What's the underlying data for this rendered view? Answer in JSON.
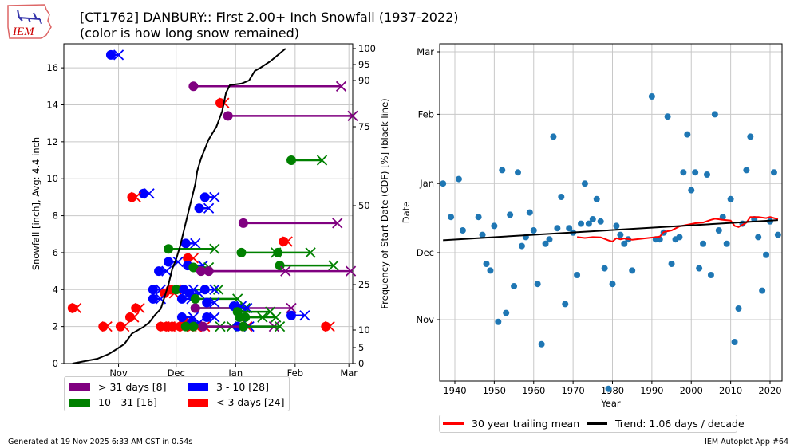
{
  "header": {
    "logo_text": "IEM",
    "title_line1": "[CT1762] DANBURY:: First 2.00+ Inch Snowfall (1937-2022)",
    "title_line2": "(color is how long snow remained)"
  },
  "footer": {
    "generated": "Generated at 19 Nov 2025 6:33 AM CST in 0.54s",
    "app": "IEM Autoplot App #64"
  },
  "chart_data": [
    {
      "type": "scatter",
      "title": "First 2.00+ Inch Snowfall by start date, amount and duration",
      "xlabel": "",
      "ylabel": "Snowfall [inch], Avg: 4.4 inch",
      "y2label": "Frequency of Start Date (CDF) [%] (black line)",
      "x_units": "days since Oct 1",
      "xlim": [
        2.5,
        153
      ],
      "ylim": [
        0,
        17.3
      ],
      "xticks": [
        {
          "label": "Nov",
          "day": 31
        },
        {
          "label": "Dec",
          "day": 61
        },
        {
          "label": "Jan",
          "day": 92
        },
        {
          "label": "Feb",
          "day": 123
        },
        {
          "label": "Mar",
          "day": 151
        }
      ],
      "yticks": [
        0,
        2,
        4,
        6,
        8,
        10,
        12,
        14,
        16
      ],
      "y2ticks": [
        0,
        5,
        10,
        25,
        50,
        75,
        90,
        95,
        100
      ],
      "grid": true,
      "legend": [
        {
          "label": "> 31 days [8]",
          "color": "#800080"
        },
        {
          "label": "3 - 10 [28]",
          "color": "#0000ff"
        },
        {
          "label": "10 - 31 [16]",
          "color": "#008000"
        },
        {
          "label": "< 3 days [24]",
          "color": "#ff0000"
        }
      ],
      "colors": {
        "gt31": "#800080",
        "10to31": "#008000",
        "3to10": "#0000ff",
        "lt3": "#ff0000",
        "cdf": "#000000"
      },
      "events": [
        {
          "start": 27,
          "end": 31,
          "snow": 16.7,
          "cls": "3to10"
        },
        {
          "start": 70,
          "end": 147,
          "snow": 15.0,
          "cls": "gt31"
        },
        {
          "start": 88,
          "end": 153,
          "snow": 13.4,
          "cls": "gt31"
        },
        {
          "start": 84,
          "end": 86,
          "snow": 14.1,
          "cls": "lt3"
        },
        {
          "start": 121,
          "end": 137,
          "snow": 11.0,
          "cls": "10to31"
        },
        {
          "start": 44,
          "end": 47,
          "snow": 9.2,
          "cls": "3to10"
        },
        {
          "start": 38,
          "end": 40,
          "snow": 9.0,
          "cls": "lt3"
        },
        {
          "start": 76,
          "end": 81,
          "snow": 9.0,
          "cls": "3to10"
        },
        {
          "start": 73,
          "end": 78,
          "snow": 8.4,
          "cls": "3to10"
        },
        {
          "start": 96,
          "end": 145,
          "snow": 7.6,
          "cls": "gt31"
        },
        {
          "start": 117,
          "end": 119,
          "snow": 6.6,
          "cls": "lt3"
        },
        {
          "start": 66,
          "end": 71,
          "snow": 6.5,
          "cls": "3to10"
        },
        {
          "start": 57,
          "end": 81,
          "snow": 6.2,
          "cls": "10to31"
        },
        {
          "start": 95,
          "end": 113,
          "snow": 6.0,
          "cls": "10to31"
        },
        {
          "start": 114,
          "end": 131,
          "snow": 6.0,
          "cls": "10to31"
        },
        {
          "start": 67,
          "end": 70,
          "snow": 5.7,
          "cls": "lt3"
        },
        {
          "start": 57,
          "end": 62,
          "snow": 5.5,
          "cls": "3to10"
        },
        {
          "start": 67,
          "end": 75,
          "snow": 5.3,
          "cls": "3to10"
        },
        {
          "start": 115,
          "end": 143,
          "snow": 5.3,
          "cls": "10to31"
        },
        {
          "start": 70,
          "end": 78,
          "snow": 5.2,
          "cls": "10to31"
        },
        {
          "start": 52,
          "end": 56,
          "snow": 5.0,
          "cls": "3to10"
        },
        {
          "start": 74,
          "end": 118,
          "snow": 5.0,
          "cls": "gt31"
        },
        {
          "start": 78,
          "end": 152,
          "snow": 5.0,
          "cls": "gt31"
        },
        {
          "start": 49,
          "end": 53,
          "snow": 4.0,
          "cls": "3to10"
        },
        {
          "start": 55,
          "end": 60,
          "snow": 3.8,
          "cls": "lt3"
        },
        {
          "start": 58,
          "end": 61,
          "snow": 4.0,
          "cls": "lt3"
        },
        {
          "start": 61,
          "end": 83,
          "snow": 4.0,
          "cls": "10to31"
        },
        {
          "start": 65,
          "end": 70,
          "snow": 4.0,
          "cls": "3to10"
        },
        {
          "start": 68,
          "end": 73,
          "snow": 3.8,
          "cls": "3to10"
        },
        {
          "start": 76,
          "end": 81,
          "snow": 4.0,
          "cls": "3to10"
        },
        {
          "start": 49,
          "end": 53,
          "snow": 3.5,
          "cls": "3to10"
        },
        {
          "start": 64,
          "end": 69,
          "snow": 3.5,
          "cls": "3to10"
        },
        {
          "start": 71,
          "end": 93,
          "snow": 3.5,
          "cls": "10to31"
        },
        {
          "start": 71,
          "end": 97,
          "snow": 3.0,
          "cls": "10to31"
        },
        {
          "start": 71,
          "end": 121,
          "snow": 3.0,
          "cls": "gt31"
        },
        {
          "start": 77,
          "end": 81,
          "snow": 3.3,
          "cls": "3to10"
        },
        {
          "start": 91,
          "end": 95,
          "snow": 3.1,
          "cls": "3to10"
        },
        {
          "start": 93,
          "end": 98,
          "snow": 3.0,
          "cls": "3to10"
        },
        {
          "start": 93,
          "end": 110,
          "snow": 2.8,
          "cls": "10to31"
        },
        {
          "start": 94,
          "end": 106,
          "snow": 2.5,
          "cls": "10to31"
        },
        {
          "start": 97,
          "end": 113,
          "snow": 2.5,
          "cls": "10to31"
        },
        {
          "start": 121,
          "end": 128,
          "snow": 2.6,
          "cls": "3to10"
        },
        {
          "start": 7,
          "end": 9,
          "snow": 3.0,
          "cls": "lt3"
        },
        {
          "start": 37,
          "end": 39,
          "snow": 2.5,
          "cls": "lt3"
        },
        {
          "start": 40,
          "end": 42,
          "snow": 3.0,
          "cls": "lt3"
        },
        {
          "start": 23,
          "end": 25,
          "snow": 2.0,
          "cls": "lt3"
        },
        {
          "start": 32,
          "end": 34,
          "snow": 2.0,
          "cls": "lt3"
        },
        {
          "start": 53,
          "end": 55,
          "snow": 2.0,
          "cls": "lt3"
        },
        {
          "start": 56,
          "end": 58,
          "snow": 2.0,
          "cls": "lt3"
        },
        {
          "start": 59,
          "end": 61,
          "snow": 2.0,
          "cls": "lt3"
        },
        {
          "start": 63,
          "end": 65,
          "snow": 2.0,
          "cls": "lt3"
        },
        {
          "start": 65,
          "end": 67,
          "snow": 2.3,
          "cls": "lt3"
        },
        {
          "start": 67,
          "end": 69,
          "snow": 2.0,
          "cls": "lt3"
        },
        {
          "start": 70,
          "end": 72,
          "snow": 2.0,
          "cls": "lt3"
        },
        {
          "start": 74,
          "end": 76,
          "snow": 2.0,
          "cls": "lt3"
        },
        {
          "start": 96,
          "end": 98,
          "snow": 2.0,
          "cls": "lt3"
        },
        {
          "start": 139,
          "end": 141,
          "snow": 2.0,
          "cls": "lt3"
        },
        {
          "start": 64,
          "end": 70,
          "snow": 2.5,
          "cls": "3to10"
        },
        {
          "start": 69,
          "end": 73,
          "snow": 2.2,
          "cls": "3to10"
        },
        {
          "start": 77,
          "end": 81,
          "snow": 2.5,
          "cls": "3to10"
        },
        {
          "start": 66,
          "end": 84,
          "snow": 2.0,
          "cls": "10to31"
        },
        {
          "start": 70,
          "end": 90,
          "snow": 2.0,
          "cls": "10to31"
        },
        {
          "start": 93,
          "end": 99,
          "snow": 2.0,
          "cls": "3to10"
        },
        {
          "start": 75,
          "end": 112,
          "snow": 2.0,
          "cls": "gt31"
        },
        {
          "start": 96,
          "end": 115,
          "snow": 2.0,
          "cls": "10to31"
        }
      ],
      "cdf": [
        [
          7,
          0
        ],
        [
          20,
          1.5
        ],
        [
          26,
          3
        ],
        [
          30,
          4.5
        ],
        [
          34,
          6
        ],
        [
          38,
          9
        ],
        [
          44,
          11
        ],
        [
          47,
          12.5
        ],
        [
          50,
          15
        ],
        [
          53,
          17
        ],
        [
          55,
          21
        ],
        [
          57,
          25
        ],
        [
          59,
          30
        ],
        [
          61,
          33
        ],
        [
          63,
          37
        ],
        [
          65,
          42
        ],
        [
          67,
          47
        ],
        [
          69,
          52
        ],
        [
          71,
          57
        ],
        [
          72,
          61
        ],
        [
          74,
          65
        ],
        [
          76,
          68
        ],
        [
          78,
          71
        ],
        [
          80,
          73
        ],
        [
          82,
          75
        ],
        [
          85,
          80
        ],
        [
          87,
          86
        ],
        [
          89,
          88.5
        ],
        [
          95,
          89
        ],
        [
          99,
          90
        ],
        [
          102,
          93
        ],
        [
          105,
          94
        ],
        [
          110,
          96
        ],
        [
          114,
          98
        ],
        [
          118,
          100
        ]
      ]
    },
    {
      "type": "scatter",
      "title": "Start date of first 2.00+ inch snowfall by season",
      "xlabel": "Year",
      "ylabel": "Date",
      "xlim": [
        1936,
        2023
      ],
      "ylim_days_since_oct1": [
        9,
        156
      ],
      "xticks": [
        1940,
        1950,
        1960,
        1970,
        1980,
        1990,
        2000,
        2010,
        2020
      ],
      "yticks": [
        {
          "label": "Nov",
          "day": 31
        },
        {
          "label": "Dec",
          "day": 61
        },
        {
          "label": "Jan",
          "day": 92
        },
        {
          "label": "Feb",
          "day": 123
        },
        {
          "label": "Mar",
          "day": 151
        }
      ],
      "grid": true,
      "legend": [
        {
          "label": "30 year trailing mean",
          "color": "#ff0000"
        },
        {
          "label": "Trend: 1.06 days / decade",
          "color": "#000000"
        }
      ],
      "point_color": "#1f77b4",
      "points": [
        [
          1937,
          92
        ],
        [
          1939,
          77
        ],
        [
          1941,
          94
        ],
        [
          1942,
          71
        ],
        [
          1946,
          77
        ],
        [
          1947,
          69
        ],
        [
          1948,
          56
        ],
        [
          1949,
          53
        ],
        [
          1950,
          73
        ],
        [
          1951,
          30
        ],
        [
          1952,
          98
        ],
        [
          1953,
          34
        ],
        [
          1954,
          78
        ],
        [
          1955,
          46
        ],
        [
          1956,
          97
        ],
        [
          1957,
          64
        ],
        [
          1958,
          68
        ],
        [
          1959,
          79
        ],
        [
          1960,
          71
        ],
        [
          1961,
          47
        ],
        [
          1962,
          20
        ],
        [
          1963,
          65
        ],
        [
          1964,
          67
        ],
        [
          1965,
          113
        ],
        [
          1966,
          72
        ],
        [
          1967,
          86
        ],
        [
          1968,
          38
        ],
        [
          1969,
          72
        ],
        [
          1970,
          70
        ],
        [
          1971,
          51
        ],
        [
          1972,
          74
        ],
        [
          1973,
          92
        ],
        [
          1974,
          74
        ],
        [
          1975,
          76
        ],
        [
          1976,
          85
        ],
        [
          1977,
          75
        ],
        [
          1978,
          54
        ],
        [
          1979,
          0
        ],
        [
          1980,
          47
        ],
        [
          1981,
          73
        ],
        [
          1982,
          69
        ],
        [
          1983,
          65
        ],
        [
          1984,
          67
        ],
        [
          1985,
          53
        ],
        [
          1990,
          131
        ],
        [
          1991,
          67
        ],
        [
          1992,
          67
        ],
        [
          1993,
          70
        ],
        [
          1994,
          122
        ],
        [
          1995,
          56
        ],
        [
          1996,
          67
        ],
        [
          1997,
          68
        ],
        [
          1998,
          97
        ],
        [
          1999,
          114
        ],
        [
          2000,
          89
        ],
        [
          2001,
          97
        ],
        [
          2002,
          54
        ],
        [
          2003,
          65
        ],
        [
          2004,
          96
        ],
        [
          2005,
          51
        ],
        [
          2006,
          123
        ],
        [
          2007,
          71
        ],
        [
          2008,
          77
        ],
        [
          2009,
          65
        ],
        [
          2010,
          85
        ],
        [
          2011,
          21
        ],
        [
          2012,
          36
        ],
        [
          2013,
          74
        ],
        [
          2014,
          98
        ],
        [
          2015,
          113
        ],
        [
          2016,
          76
        ],
        [
          2017,
          68
        ],
        [
          2018,
          44
        ],
        [
          2019,
          60
        ],
        [
          2020,
          75
        ],
        [
          2021,
          97
        ],
        [
          2022,
          69
        ]
      ],
      "trailing_mean": [
        [
          1971,
          68
        ],
        [
          1973,
          67.6
        ],
        [
          1975,
          68
        ],
        [
          1977,
          67.9
        ],
        [
          1979,
          66.5
        ],
        [
          1980,
          66
        ],
        [
          1981,
          67.5
        ],
        [
          1982,
          67
        ],
        [
          1983,
          67.4
        ],
        [
          1985,
          66.8
        ],
        [
          1990,
          67.8
        ],
        [
          1992,
          68.2
        ],
        [
          1993,
          70.3
        ],
        [
          1995,
          71
        ],
        [
          1997,
          72.8
        ],
        [
          1999,
          73.5
        ],
        [
          2001,
          74.2
        ],
        [
          2003,
          74.5
        ],
        [
          2005,
          75.7
        ],
        [
          2006,
          76.2
        ],
        [
          2008,
          75.7
        ],
        [
          2010,
          75.4
        ],
        [
          2011,
          73
        ],
        [
          2012,
          72.5
        ],
        [
          2014,
          74.5
        ],
        [
          2015,
          77
        ],
        [
          2017,
          77
        ],
        [
          2019,
          76.5
        ],
        [
          2020,
          77
        ],
        [
          2022,
          76
        ]
      ],
      "trend": {
        "start": [
          1937,
          66.6
        ],
        "end": [
          2022,
          75.6
        ],
        "slope_days_per_decade": 1.06
      }
    }
  ]
}
